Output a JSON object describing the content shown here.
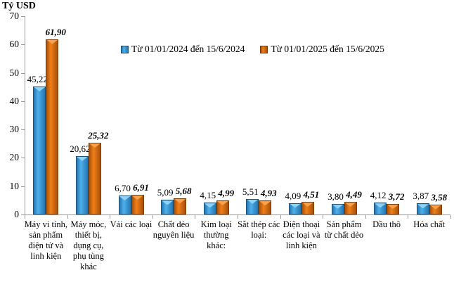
{
  "chart_data": {
    "type": "bar",
    "title": "",
    "ylabel": "Tỷ USD",
    "xlabel": "",
    "ylim": [
      0,
      70
    ],
    "yticks": [
      0,
      10,
      20,
      30,
      40,
      50,
      60,
      70
    ],
    "grid": false,
    "legend_position": "top",
    "decimal_separator": ",",
    "categories": [
      "Máy vi tính, sản phẩm điện tử và linh kiện",
      "Máy móc, thiết bị, dụng cụ, phụ tùng khác",
      "Vải các loại",
      "Chất dẻo nguyên liệu",
      "Kim loại thường khác:",
      "Sắt thép các loại:",
      "Điện thoại các loại và linh kiện",
      "Sản phẩm từ chất dẻo",
      "Dầu thô",
      "Hóa chất"
    ],
    "series": [
      {
        "name": "Từ 01/01/2024 đến 15/6/2024",
        "color": "#2E93D6",
        "color_dark": "#2376B4",
        "color_light": "#4FB0EA",
        "color_border": "#1A547F",
        "color_cap": "#8FD2F2",
        "values": [
          45.22,
          20.62,
          6.7,
          5.09,
          4.15,
          5.51,
          4.09,
          3.8,
          4.12,
          3.87
        ]
      },
      {
        "name": "Từ 01/01/2025 đến 15/6/2025",
        "color": "#DD6B0D",
        "color_dark": "#A8500A",
        "color_light": "#F08018",
        "color_border": "#7C3B06",
        "color_cap": "#F6A24F",
        "values": [
          61.9,
          25.32,
          6.91,
          5.68,
          4.99,
          4.93,
          4.51,
          4.49,
          3.72,
          3.58
        ]
      }
    ]
  }
}
